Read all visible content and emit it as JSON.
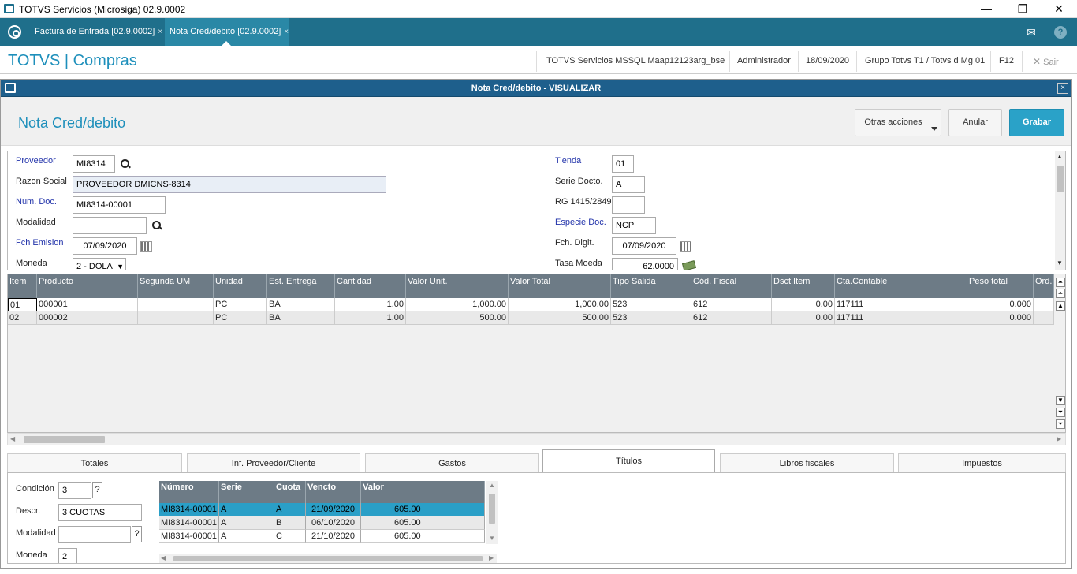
{
  "titlebar": {
    "title": "TOTVS Servicios (Microsiga) 02.9.0002",
    "min": "—",
    "restore": "❐",
    "close": "✕"
  },
  "tabs": [
    {
      "label": "Factura de Entrada [02.9.0002]",
      "close": "×"
    },
    {
      "label": "Nota Cred/debito [02.9.0002]",
      "close": "×"
    }
  ],
  "header": {
    "brand": "TOTVS | Compras",
    "server": "TOTVS Servicios MSSQL Maap12123arg_bse",
    "user": "Administrador",
    "date": "18/09/2020",
    "group": "Grupo Totvs T1 / Totvs d Mg 01",
    "shortcut": "F12",
    "exit": "Sair"
  },
  "window": {
    "title": "Nota Cred/debito - VISUALIZAR",
    "close": "×"
  },
  "form": {
    "title": "Nota Cred/debito",
    "buttons": {
      "actions": "Otras acciones",
      "cancel": "Anular",
      "save": "Grabar"
    },
    "left": {
      "proveedor_label": "Proveedor",
      "proveedor": "MI8314",
      "razon_label": "Razon Social",
      "razon": "PROVEEDOR DMICNS-8314",
      "numdoc_label": "Num. Doc.",
      "numdoc": "MI8314-00001",
      "modalidad_label": "Modalidad",
      "modalidad": "",
      "fch_label": "Fch Emision",
      "fch": "07/09/2020",
      "moneda_label": "Moneda",
      "moneda": "2 - DOLA"
    },
    "right": {
      "tienda_label": "Tienda",
      "tienda": "01",
      "serie_label": "Serie Docto.",
      "serie": "A",
      "rg_label": "RG 1415/2849",
      "rg": "",
      "especie_label": "Especie Doc.",
      "especie": "NCP",
      "fchdigit_label": "Fch. Digit.",
      "fchdigit": "07/09/2020",
      "tasa_label": "Tasa Moeda",
      "tasa": "62.0000"
    }
  },
  "grid": {
    "headers": [
      "Item",
      "Producto",
      "Segunda UM",
      "Unidad",
      "Est. Entrega",
      "Cantidad",
      "Valor Unit.",
      "Valor Total",
      "Tipo Salida",
      "Cód. Fiscal",
      "Dsct.Item",
      "Cta.Contable",
      "Peso total",
      "Ord."
    ],
    "rows": [
      [
        "01",
        "000001",
        "",
        "PC",
        "BA",
        "1.00",
        "1,000.00",
        "1,000.00",
        "523",
        "612",
        "0.00",
        "117111",
        "0.000",
        ""
      ],
      [
        "02",
        "000002",
        "",
        "PC",
        "BA",
        "1.00",
        "500.00",
        "500.00",
        "523",
        "612",
        "0.00",
        "117111",
        "0.000",
        ""
      ]
    ]
  },
  "bottom_tabs": [
    "Totales",
    "Inf. Proveedor/Cliente",
    "Gastos",
    "Títulos",
    "Libros fiscales",
    "Impuestos"
  ],
  "titulos": {
    "condicion_label": "Condición",
    "condicion": "3",
    "descr_label": "Descr.",
    "descr": "3 CUOTAS",
    "modalidad_label": "Modalidad",
    "modalidad": "",
    "moneda_label": "Moneda",
    "moneda": "2",
    "q": "?",
    "headers": [
      "Número",
      "Serie",
      "Cuota",
      "Vencto",
      "Valor"
    ],
    "rows": [
      [
        "MI8314-00001",
        "A",
        "A",
        "21/09/2020",
        "605.00"
      ],
      [
        "MI8314-00001",
        "A",
        "B",
        "06/10/2020",
        "605.00"
      ],
      [
        "MI8314-00001",
        "A",
        "C",
        "21/10/2020",
        "605.00"
      ]
    ]
  },
  "colors": {
    "tabbar": "#1f6f8b",
    "brand": "#1d8fbb",
    "windowbar": "#1e5f8c",
    "primary": "#2aa2c8",
    "selected_row": "#2a9fc7"
  },
  "icons": [
    "app-icon",
    "totvs-logo-icon",
    "mail-icon",
    "help-icon",
    "close-icon",
    "search-icon",
    "calendar-icon",
    "money-icon"
  ]
}
